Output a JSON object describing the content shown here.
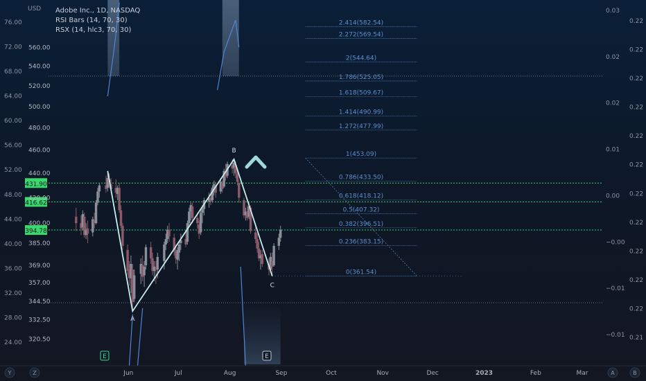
{
  "legend": {
    "symbol": "Adobe Inc., 1D, NASDAQ",
    "ind1": "RSI Bars (14, 70, 30)",
    "ind2": "RSX (14, hlc3, 70, 30)"
  },
  "currency_label": "USD",
  "bottom_icons": {
    "left1": "Y",
    "left2": "Z",
    "right1": "A",
    "right2": "B"
  },
  "event_markers": [
    "E",
    "E"
  ],
  "bullish_marker": "^",
  "colors": {
    "background_top": "#0a1f37",
    "background_bottom": "#131722",
    "up_candle": "#8a8f9a",
    "down_candle": "#8c5a68",
    "abc_line": "#c9ecec",
    "fib_line": "#4d7bb5",
    "fib_text": "#5a8fd0",
    "green_level": "#39d96b",
    "rsi_fill": "#7d93ae",
    "arrow": "#9ed8d8"
  },
  "chart_data": {
    "type": "candlestick",
    "title": "Adobe Inc., 1D, NASDAQ",
    "x_ticks": [
      "Jun",
      "Jul",
      "Aug",
      "Sep",
      "Oct",
      "Nov",
      "Dec",
      "2023",
      "Feb",
      "Mar"
    ],
    "price_axis": {
      "ticks": [
        "560.00",
        "540.00",
        "520.00",
        "500.00",
        "480.00",
        "460.00",
        "440.00",
        "420.00",
        "400.00",
        "385.00",
        "369.00",
        "357.00",
        "344.50",
        "332.50",
        "320.50"
      ],
      "tick_values": [
        560,
        540,
        520,
        500,
        480,
        460,
        440,
        420,
        400,
        385,
        369,
        357,
        344.5,
        332.5,
        320.5
      ],
      "scale": "log",
      "range": [
        311,
        605
      ]
    },
    "left_axis": {
      "ticks": [
        "76.00",
        "72.00",
        "68.00",
        "64.00",
        "60.00",
        "56.00",
        "52.00",
        "48.00",
        "44.00",
        "40.00",
        "36.00",
        "32.00",
        "28.00",
        "24.00"
      ]
    },
    "right_axis_1": {
      "ticks": [
        "0.03",
        "0.02",
        "0.02",
        "0.01",
        "0.00",
        "−0.00",
        "−0.01",
        "−0.01"
      ]
    },
    "right_axis_2": {
      "ticks": [
        "0.22",
        "0.22",
        "0.22",
        "0.22",
        "0.22",
        "0.22",
        "0.22",
        "0.22",
        "0.22",
        "0.22",
        "0.22",
        "0.21"
      ]
    },
    "price_badges": [
      {
        "label": "431.90",
        "value": 431.9
      },
      {
        "label": "416.62",
        "value": 416.62
      },
      {
        "label": "394.78",
        "value": 394.78
      }
    ],
    "abc_wave": [
      {
        "label": "A",
        "date": "2022-06-16",
        "price": 338.0
      },
      {
        "label": "B",
        "date": "2022-08-16",
        "price": 452.0
      },
      {
        "label": "C",
        "date": "2022-09-08",
        "price": 361.5
      }
    ],
    "abc_start": {
      "date": "2022-06-01",
      "price": 442.0
    },
    "fib_levels": [
      {
        "ratio": 0,
        "price": 361.54,
        "label": "0(361.54)"
      },
      {
        "ratio": 0.236,
        "price": 383.15,
        "label": "0.236(383.15)"
      },
      {
        "ratio": 0.382,
        "price": 396.51,
        "label": "0.382(396.51)"
      },
      {
        "ratio": 0.5,
        "price": 407.32,
        "label": "0.5(407.32)"
      },
      {
        "ratio": 0.618,
        "price": 418.12,
        "label": "0.618(418.12)"
      },
      {
        "ratio": 0.786,
        "price": 433.5,
        "label": "0.786(433.50)"
      },
      {
        "ratio": 1,
        "price": 453.09,
        "label": "1(453.09)"
      },
      {
        "ratio": 1.272,
        "price": 477.99,
        "label": "1.272(477.99)"
      },
      {
        "ratio": 1.414,
        "price": 490.99,
        "label": "1.414(490.99)"
      },
      {
        "ratio": 1.618,
        "price": 509.67,
        "label": "1.618(509.67)"
      },
      {
        "ratio": 1.786,
        "price": 525.05,
        "label": "1.786(525.05)"
      },
      {
        "ratio": 2,
        "price": 544.64,
        "label": "2(544.64)"
      },
      {
        "ratio": 2.272,
        "price": 569.54,
        "label": "2.272(569.54)"
      },
      {
        "ratio": 2.414,
        "price": 582.54,
        "label": "2.414(582.54)"
      }
    ],
    "candles": [
      {
        "date": "2022-05-13",
        "o": 405,
        "h": 412,
        "l": 394,
        "c": 400
      },
      {
        "date": "2022-05-16",
        "o": 400,
        "h": 406,
        "l": 391,
        "c": 396
      },
      {
        "date": "2022-05-17",
        "o": 397,
        "h": 410,
        "l": 395,
        "c": 407
      },
      {
        "date": "2022-05-18",
        "o": 405,
        "h": 408,
        "l": 389,
        "c": 391
      },
      {
        "date": "2022-05-19",
        "o": 391,
        "h": 400,
        "l": 388,
        "c": 395
      },
      {
        "date": "2022-05-20",
        "o": 396,
        "h": 402,
        "l": 385,
        "c": 392
      },
      {
        "date": "2022-05-23",
        "o": 393,
        "h": 405,
        "l": 390,
        "c": 403
      },
      {
        "date": "2022-05-24",
        "o": 402,
        "h": 408,
        "l": 396,
        "c": 400
      },
      {
        "date": "2022-05-25",
        "o": 400,
        "h": 418,
        "l": 399,
        "c": 416
      },
      {
        "date": "2022-05-26",
        "o": 416,
        "h": 428,
        "l": 414,
        "c": 425
      },
      {
        "date": "2022-05-27",
        "o": 425,
        "h": 432,
        "l": 420,
        "c": 430
      },
      {
        "date": "2022-05-31",
        "o": 430,
        "h": 438,
        "l": 424,
        "c": 427
      },
      {
        "date": "2022-06-01",
        "o": 428,
        "h": 442,
        "l": 425,
        "c": 436
      },
      {
        "date": "2022-06-02",
        "o": 435,
        "h": 440,
        "l": 428,
        "c": 432
      },
      {
        "date": "2022-06-03",
        "o": 431,
        "h": 436,
        "l": 424,
        "c": 427
      },
      {
        "date": "2022-06-06",
        "o": 428,
        "h": 435,
        "l": 420,
        "c": 424
      },
      {
        "date": "2022-06-07",
        "o": 423,
        "h": 430,
        "l": 418,
        "c": 428
      },
      {
        "date": "2022-06-08",
        "o": 428,
        "h": 432,
        "l": 408,
        "c": 410
      },
      {
        "date": "2022-06-09",
        "o": 410,
        "h": 414,
        "l": 396,
        "c": 398
      },
      {
        "date": "2022-06-10",
        "o": 398,
        "h": 400,
        "l": 380,
        "c": 383
      },
      {
        "date": "2022-06-13",
        "o": 380,
        "h": 384,
        "l": 362,
        "c": 365
      },
      {
        "date": "2022-06-14",
        "o": 366,
        "h": 372,
        "l": 355,
        "c": 360
      },
      {
        "date": "2022-06-15",
        "o": 360,
        "h": 376,
        "l": 350,
        "c": 370
      },
      {
        "date": "2022-06-16",
        "o": 366,
        "h": 370,
        "l": 338,
        "c": 344
      },
      {
        "date": "2022-06-17",
        "o": 346,
        "h": 366,
        "l": 344,
        "c": 362
      },
      {
        "date": "2022-06-21",
        "o": 363,
        "h": 374,
        "l": 356,
        "c": 370
      },
      {
        "date": "2022-06-22",
        "o": 369,
        "h": 376,
        "l": 358,
        "c": 361
      },
      {
        "date": "2022-06-23",
        "o": 362,
        "h": 372,
        "l": 354,
        "c": 368
      },
      {
        "date": "2022-06-24",
        "o": 369,
        "h": 384,
        "l": 366,
        "c": 382
      },
      {
        "date": "2022-06-27",
        "o": 382,
        "h": 386,
        "l": 370,
        "c": 374
      },
      {
        "date": "2022-06-28",
        "o": 374,
        "h": 378,
        "l": 362,
        "c": 365
      },
      {
        "date": "2022-06-29",
        "o": 365,
        "h": 372,
        "l": 358,
        "c": 368
      },
      {
        "date": "2022-06-30",
        "o": 367,
        "h": 372,
        "l": 356,
        "c": 366
      },
      {
        "date": "2022-07-01",
        "o": 366,
        "h": 378,
        "l": 360,
        "c": 375
      },
      {
        "date": "2022-07-05",
        "o": 372,
        "h": 386,
        "l": 366,
        "c": 384
      },
      {
        "date": "2022-07-06",
        "o": 384,
        "h": 392,
        "l": 380,
        "c": 388
      },
      {
        "date": "2022-07-07",
        "o": 388,
        "h": 398,
        "l": 385,
        "c": 395
      },
      {
        "date": "2022-07-08",
        "o": 395,
        "h": 400,
        "l": 386,
        "c": 390
      },
      {
        "date": "2022-07-11",
        "o": 389,
        "h": 392,
        "l": 376,
        "c": 379
      },
      {
        "date": "2022-07-12",
        "o": 379,
        "h": 384,
        "l": 370,
        "c": 374
      },
      {
        "date": "2022-07-13",
        "o": 373,
        "h": 382,
        "l": 366,
        "c": 380
      },
      {
        "date": "2022-07-14",
        "o": 378,
        "h": 386,
        "l": 372,
        "c": 384
      },
      {
        "date": "2022-07-15",
        "o": 385,
        "h": 392,
        "l": 380,
        "c": 387
      },
      {
        "date": "2022-07-18",
        "o": 388,
        "h": 395,
        "l": 382,
        "c": 384
      },
      {
        "date": "2022-07-19",
        "o": 386,
        "h": 402,
        "l": 384,
        "c": 400
      },
      {
        "date": "2022-07-20",
        "o": 400,
        "h": 412,
        "l": 398,
        "c": 409
      },
      {
        "date": "2022-07-21",
        "o": 409,
        "h": 416,
        "l": 402,
        "c": 414
      },
      {
        "date": "2022-07-22",
        "o": 413,
        "h": 416,
        "l": 400,
        "c": 404
      },
      {
        "date": "2022-07-25",
        "o": 404,
        "h": 408,
        "l": 396,
        "c": 400
      },
      {
        "date": "2022-07-26",
        "o": 399,
        "h": 402,
        "l": 388,
        "c": 392
      },
      {
        "date": "2022-07-27",
        "o": 393,
        "h": 410,
        "l": 391,
        "c": 408
      },
      {
        "date": "2022-07-28",
        "o": 408,
        "h": 414,
        "l": 400,
        "c": 411
      },
      {
        "date": "2022-07-29",
        "o": 411,
        "h": 420,
        "l": 406,
        "c": 418
      },
      {
        "date": "2022-08-01",
        "o": 417,
        "h": 424,
        "l": 412,
        "c": 420
      },
      {
        "date": "2022-08-02",
        "o": 420,
        "h": 426,
        "l": 414,
        "c": 417
      },
      {
        "date": "2022-08-03",
        "o": 418,
        "h": 430,
        "l": 416,
        "c": 428
      },
      {
        "date": "2022-08-04",
        "o": 428,
        "h": 434,
        "l": 422,
        "c": 431
      },
      {
        "date": "2022-08-05",
        "o": 430,
        "h": 433,
        "l": 420,
        "c": 424
      },
      {
        "date": "2022-08-08",
        "o": 425,
        "h": 436,
        "l": 423,
        "c": 433
      },
      {
        "date": "2022-08-09",
        "o": 432,
        "h": 434,
        "l": 424,
        "c": 427
      },
      {
        "date": "2022-08-10",
        "o": 429,
        "h": 444,
        "l": 428,
        "c": 442
      },
      {
        "date": "2022-08-11",
        "o": 442,
        "h": 448,
        "l": 434,
        "c": 437
      },
      {
        "date": "2022-08-12",
        "o": 438,
        "h": 450,
        "l": 436,
        "c": 448
      },
      {
        "date": "2022-08-15",
        "o": 447,
        "h": 452,
        "l": 440,
        "c": 444
      },
      {
        "date": "2022-08-16",
        "o": 445,
        "h": 452,
        "l": 438,
        "c": 449
      },
      {
        "date": "2022-08-17",
        "o": 447,
        "h": 450,
        "l": 436,
        "c": 440
      },
      {
        "date": "2022-08-18",
        "o": 440,
        "h": 444,
        "l": 430,
        "c": 433
      },
      {
        "date": "2022-08-19",
        "o": 432,
        "h": 434,
        "l": 416,
        "c": 420
      },
      {
        "date": "2022-08-22",
        "o": 418,
        "h": 420,
        "l": 404,
        "c": 406
      },
      {
        "date": "2022-08-23",
        "o": 406,
        "h": 412,
        "l": 402,
        "c": 409
      },
      {
        "date": "2022-08-24",
        "o": 409,
        "h": 414,
        "l": 402,
        "c": 404
      },
      {
        "date": "2022-08-25",
        "o": 405,
        "h": 416,
        "l": 403,
        "c": 413
      },
      {
        "date": "2022-08-26",
        "o": 412,
        "h": 414,
        "l": 392,
        "c": 394
      },
      {
        "date": "2022-08-29",
        "o": 393,
        "h": 398,
        "l": 385,
        "c": 388
      },
      {
        "date": "2022-08-30",
        "o": 388,
        "h": 392,
        "l": 378,
        "c": 381
      },
      {
        "date": "2022-08-31",
        "o": 381,
        "h": 386,
        "l": 372,
        "c": 374
      },
      {
        "date": "2022-09-01",
        "o": 374,
        "h": 380,
        "l": 366,
        "c": 376
      },
      {
        "date": "2022-09-02",
        "o": 377,
        "h": 380,
        "l": 368,
        "c": 370
      },
      {
        "date": "2022-09-06",
        "o": 370,
        "h": 374,
        "l": 362,
        "c": 366
      },
      {
        "date": "2022-09-07",
        "o": 366,
        "h": 378,
        "l": 364,
        "c": 375
      },
      {
        "date": "2022-09-08",
        "o": 372,
        "h": 378,
        "l": 361.5,
        "c": 368
      },
      {
        "date": "2022-09-09",
        "o": 369,
        "h": 385,
        "l": 368,
        "c": 383
      },
      {
        "date": "2022-09-12",
        "o": 383,
        "h": 392,
        "l": 380,
        "c": 389
      },
      {
        "date": "2022-09-13",
        "o": 389,
        "h": 398,
        "l": 386,
        "c": 395
      }
    ]
  }
}
